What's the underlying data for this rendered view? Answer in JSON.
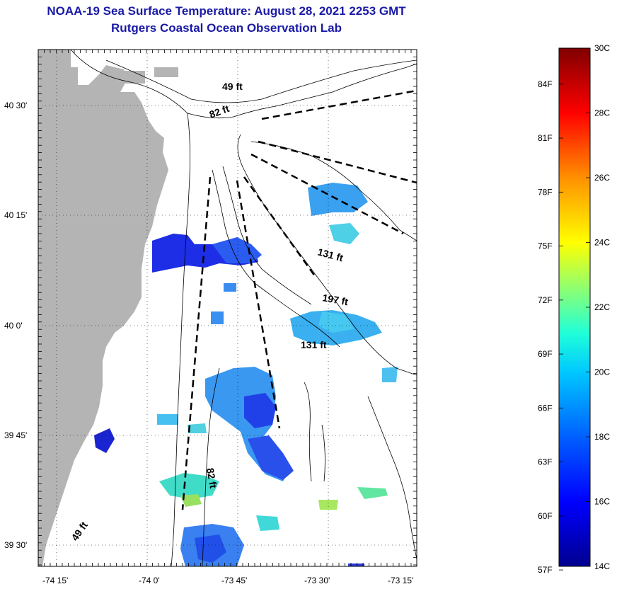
{
  "title_line1": "NOAA-19 Sea Surface Temperature:  August 28, 2021 2253 GMT",
  "title_line2": "Rutgers Coastal Ocean Observation Lab",
  "map": {
    "land_color": "#b4b4b4",
    "lat_ticks": [
      {
        "label": "40 30'",
        "lat": 40.5
      },
      {
        "label": "40 15'",
        "lat": 40.25
      },
      {
        "label": "40 0'",
        "lat": 40.0
      },
      {
        "label": "39 45'",
        "lat": 39.75
      },
      {
        "label": "39 30'",
        "lat": 39.5
      }
    ],
    "lon_ticks": [
      {
        "label": "-74 15'",
        "lon": -74.25
      },
      {
        "label": "-74 0'",
        "lon": -74.0
      },
      {
        "label": "-73 45'",
        "lon": -73.75
      },
      {
        "label": "-73 30'",
        "lon": -73.5
      },
      {
        "label": "-73 15'",
        "lon": -73.25
      }
    ],
    "contour_labels": [
      "49 ft",
      "82 ft",
      "131 ft",
      "197 ft",
      "131 ft",
      "82 ft",
      "49 ft"
    ]
  },
  "colorbar": {
    "fahrenheit_labels": [
      "84F",
      "81F",
      "78F",
      "75F",
      "72F",
      "69F",
      "66F",
      "63F",
      "60F",
      "57F"
    ],
    "celsius_labels": [
      "30C",
      "28C",
      "26C",
      "24C",
      "22C",
      "20C",
      "18C",
      "16C",
      "14C"
    ],
    "celsius_min": 14,
    "celsius_max": 30,
    "colors": [
      "#00008f",
      "#0000ff",
      "#0080ff",
      "#00ffff",
      "#80ff80",
      "#ffff00",
      "#ff8000",
      "#ff0000",
      "#800000"
    ]
  }
}
